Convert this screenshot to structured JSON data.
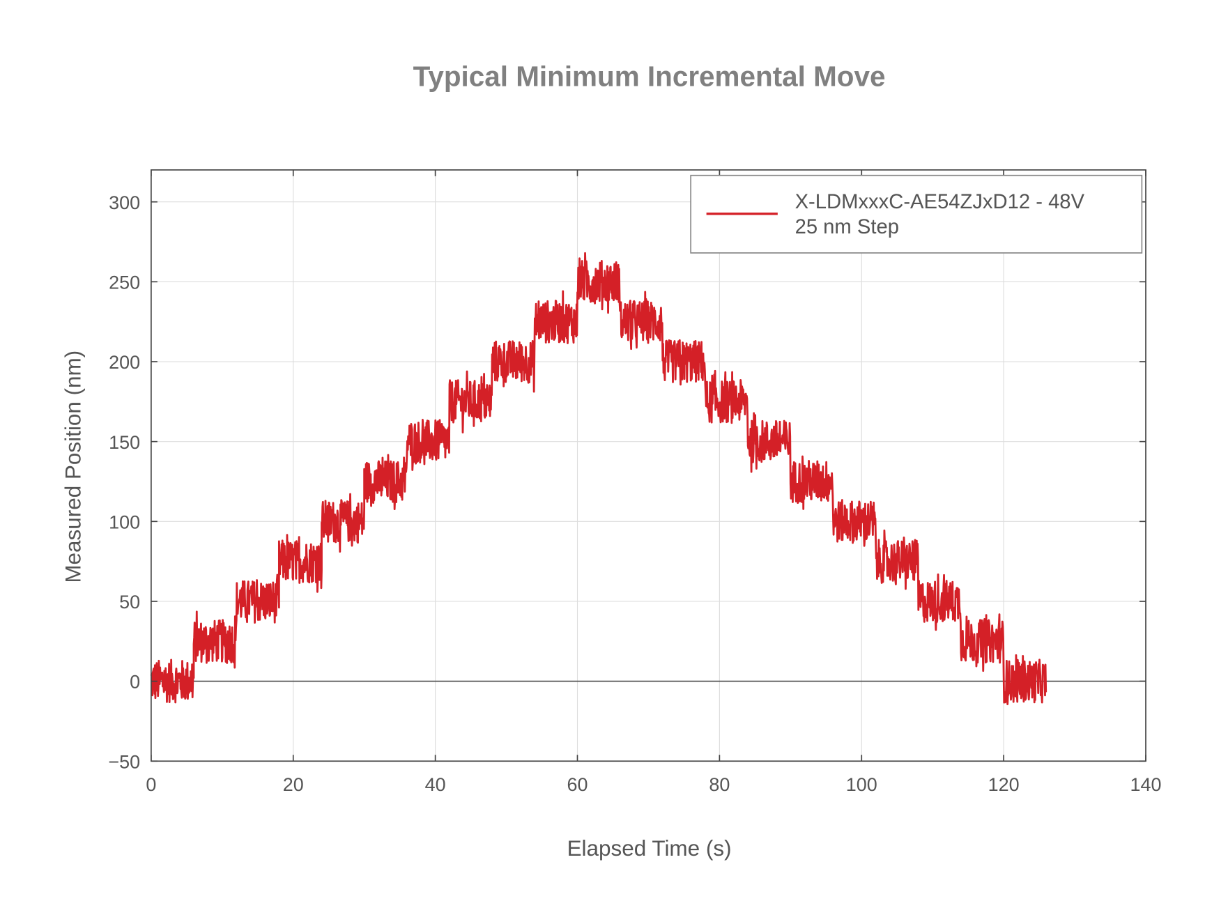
{
  "chart_data": {
    "type": "line",
    "title": "Typical Minimum Incremental Move",
    "xlabel": "Elapsed Time (s)",
    "ylabel": "Measured Position (nm)",
    "xlim": [
      0,
      140
    ],
    "ylim": [
      -50,
      320
    ],
    "xticks": [
      0,
      20,
      40,
      60,
      80,
      100,
      120,
      140
    ],
    "yticks": [
      -50,
      0,
      50,
      100,
      150,
      200,
      250,
      300
    ],
    "xtick_labels": [
      "0",
      "20",
      "40",
      "60",
      "80",
      "100",
      "120",
      "140"
    ],
    "ytick_labels": [
      "−50",
      "0",
      "50",
      "100",
      "150",
      "200",
      "250",
      "300"
    ],
    "grid": true,
    "legend_position": "top-right",
    "series": [
      {
        "name": "X-LDMxxxC-AE54ZJxD12 - 48V",
        "name_line2": "25 nm Step",
        "color": "#d42027",
        "noise_amplitude_nm": 15,
        "steps": [
          {
            "t_start": 0,
            "t_end": 6,
            "position": 0
          },
          {
            "t_start": 6,
            "t_end": 12,
            "position": 25
          },
          {
            "t_start": 12,
            "t_end": 18,
            "position": 50
          },
          {
            "t_start": 18,
            "t_end": 24,
            "position": 75
          },
          {
            "t_start": 24,
            "t_end": 30,
            "position": 100
          },
          {
            "t_start": 30,
            "t_end": 36,
            "position": 125
          },
          {
            "t_start": 36,
            "t_end": 42,
            "position": 150
          },
          {
            "t_start": 42,
            "t_end": 48,
            "position": 175
          },
          {
            "t_start": 48,
            "t_end": 54,
            "position": 200
          },
          {
            "t_start": 54,
            "t_end": 60,
            "position": 225
          },
          {
            "t_start": 60,
            "t_end": 66,
            "position": 250
          },
          {
            "t_start": 66,
            "t_end": 72,
            "position": 225
          },
          {
            "t_start": 72,
            "t_end": 78,
            "position": 200
          },
          {
            "t_start": 78,
            "t_end": 84,
            "position": 175
          },
          {
            "t_start": 84,
            "t_end": 90,
            "position": 150
          },
          {
            "t_start": 90,
            "t_end": 96,
            "position": 125
          },
          {
            "t_start": 96,
            "t_end": 102,
            "position": 100
          },
          {
            "t_start": 102,
            "t_end": 108,
            "position": 75
          },
          {
            "t_start": 108,
            "t_end": 114,
            "position": 50
          },
          {
            "t_start": 114,
            "t_end": 120,
            "position": 25
          },
          {
            "t_start": 120,
            "t_end": 126,
            "position": 0
          }
        ]
      }
    ]
  }
}
